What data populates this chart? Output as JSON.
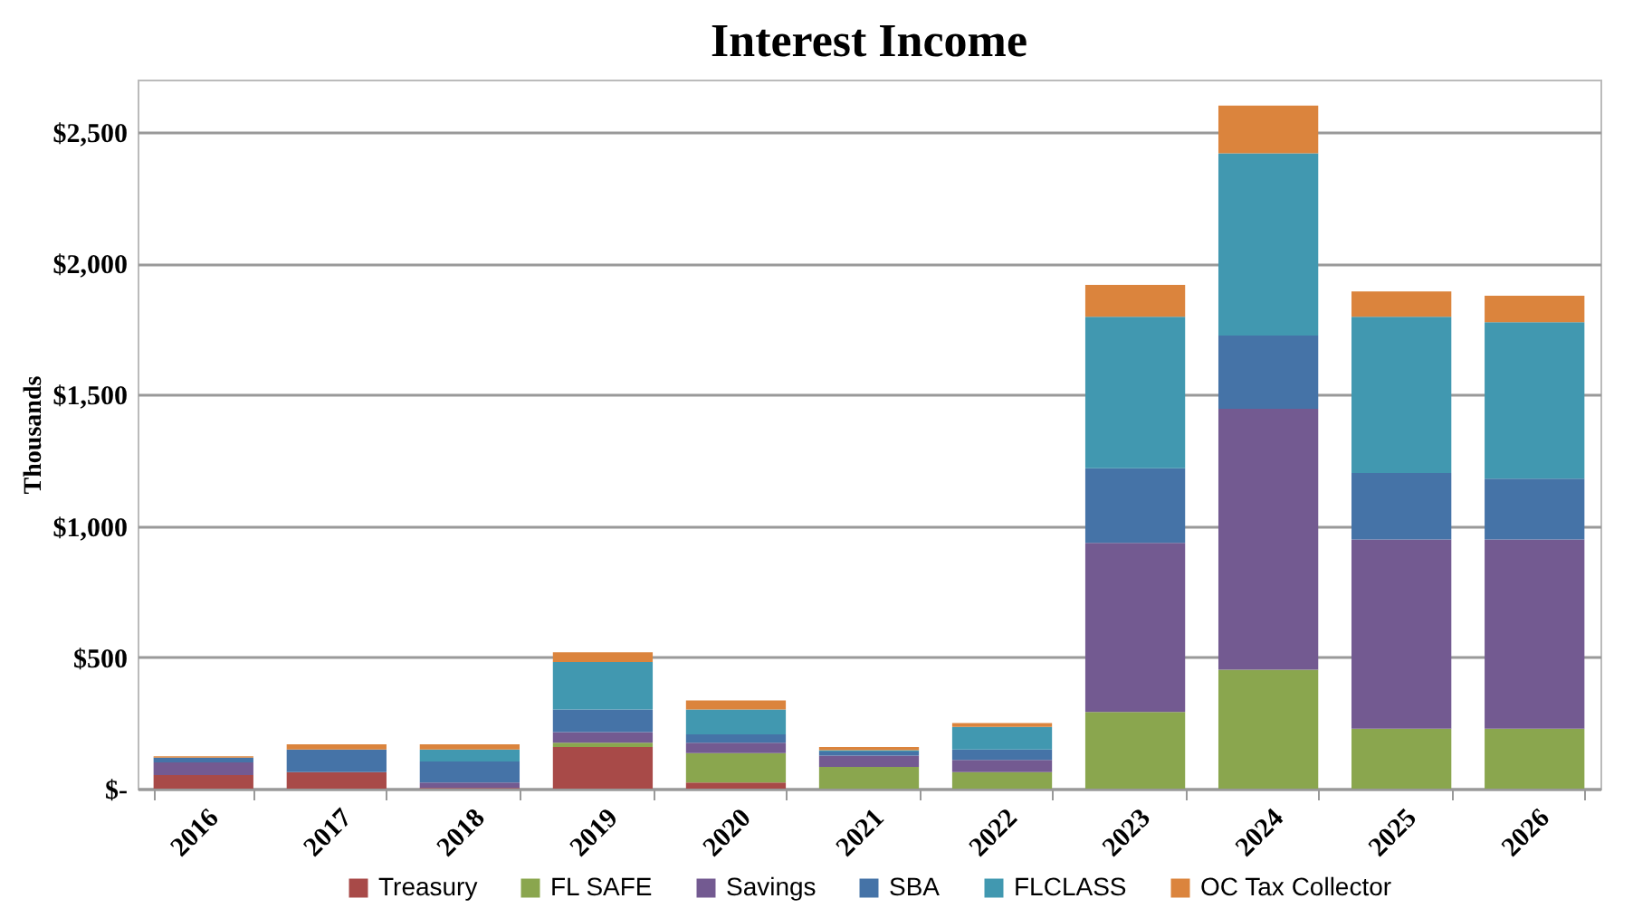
{
  "chart_data": {
    "type": "bar",
    "title": "Interest Income",
    "ylabel": "Thousands",
    "stacked": true,
    "categories": [
      "2016",
      "2017",
      "2018",
      "2019",
      "2020",
      "2021",
      "2022",
      "2023",
      "2024",
      "2025",
      "2026"
    ],
    "series": [
      {
        "name": "Treasury",
        "color": "#a84a48",
        "values": [
          52,
          63,
          3,
          158,
          23,
          0,
          0,
          0,
          0,
          0,
          0
        ]
      },
      {
        "name": "FL SAFE",
        "color": "#8aa64e",
        "values": [
          0,
          0,
          0,
          17,
          112,
          83,
          63,
          292,
          453,
          228,
          228
        ]
      },
      {
        "name": "Savings",
        "color": "#735a91",
        "values": [
          48,
          0,
          20,
          40,
          40,
          43,
          46,
          644,
          993,
          721,
          721
        ]
      },
      {
        "name": "SBA",
        "color": "#4573a7",
        "values": [
          18,
          86,
          80,
          86,
          32,
          15,
          40,
          284,
          279,
          253,
          231
        ]
      },
      {
        "name": "FLCLASS",
        "color": "#4198b0",
        "values": [
          0,
          0,
          46,
          181,
          94,
          5,
          86,
          577,
          694,
          595,
          596
        ]
      },
      {
        "name": "OC Tax Collector",
        "color": "#db843d",
        "values": [
          5,
          20,
          20,
          37,
          35,
          12,
          15,
          121,
          182,
          96,
          101
        ]
      }
    ],
    "ylim": [
      0,
      2700
    ],
    "yticks": [
      {
        "value": 0,
        "label": "$-"
      },
      {
        "value": 500,
        "label": "$500"
      },
      {
        "value": 1000,
        "label": "$1,000"
      },
      {
        "value": 1500,
        "label": "$1,500"
      },
      {
        "value": 2000,
        "label": "$2,000"
      },
      {
        "value": 2500,
        "label": "$2,500"
      }
    ],
    "grid": "y",
    "legend": "bottom"
  }
}
